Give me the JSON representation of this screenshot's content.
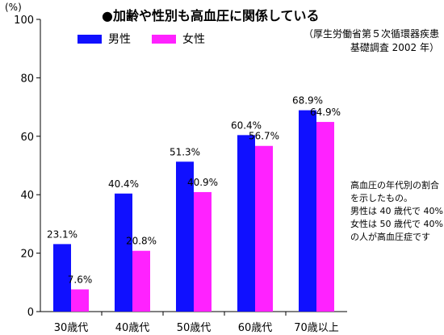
{
  "chart_data": {
    "type": "bar",
    "title": "●加齢や性別も高血圧に関係している",
    "source_line1": "（厚生労働省第５次循環器疾患",
    "source_line2": "基礎調査 2002 年）",
    "ylabel": "(%)",
    "ylim": [
      0,
      100
    ],
    "yticks": [
      0,
      20,
      40,
      60,
      80,
      100
    ],
    "categories": [
      "30歳代",
      "40歳代",
      "50歳代",
      "60歳代",
      "70歳以上"
    ],
    "series": [
      {
        "name": "男性",
        "color": "#1010ff",
        "values": [
          23.1,
          40.4,
          51.3,
          60.4,
          68.9
        ],
        "labels": [
          "23.1%",
          "40.4%",
          "51.3%",
          "60.4%",
          "68.9%"
        ]
      },
      {
        "name": "女性",
        "color": "#ff22ff",
        "values": [
          7.6,
          20.8,
          40.9,
          56.7,
          64.9
        ],
        "labels": [
          "7.6%",
          "20.8%",
          "40.9%",
          "56.7%",
          "64.9%"
        ]
      }
    ],
    "legend_position": "top-left",
    "grid": false
  },
  "note": "高血圧の年代別の割合\nを示したもの。\n男性は 40 歳代で 40%\n女性は 50 歳代で 40%\nの人が高血圧症です"
}
